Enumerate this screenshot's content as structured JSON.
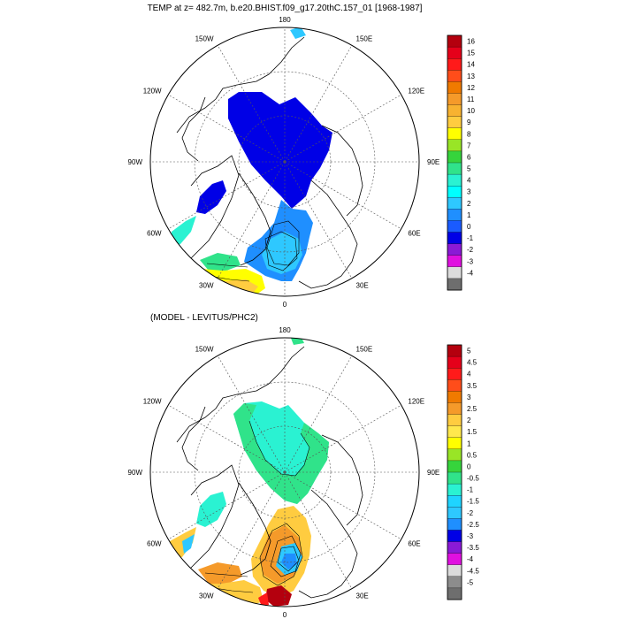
{
  "chart_data": [
    {
      "type": "heatmap",
      "projection": "north-polar-stereographic",
      "title": "TEMP at z= 482.7m, b.e20.BHIST.f09_g17.20thC.157_01 [1968-1987]",
      "longitude_labels": [
        "180",
        "150E",
        "120E",
        "90E",
        "60E",
        "30E",
        "0",
        "30W",
        "60W",
        "90W",
        "120W",
        "150W"
      ],
      "colorbar": {
        "placement": "right",
        "levels": [
          "16",
          "15",
          "14",
          "13",
          "12",
          "11",
          "10",
          "9",
          "8",
          "7",
          "6",
          "5",
          "4",
          "3",
          "2",
          "1",
          "0",
          "-1",
          "-2",
          "-3",
          "-4"
        ],
        "colors": [
          "#b4000e",
          "#e5001a",
          "#ff1a1a",
          "#ff4d1a",
          "#f07a00",
          "#f59a2a",
          "#f8b230",
          "#ffcc40",
          "#ffff00",
          "#99e526",
          "#36d43c",
          "#30e38a",
          "#2af2d2",
          "#00ffff",
          "#2ec8ff",
          "#1f8fff",
          "#1a5bff",
          "#0000e6",
          "#8a1ad6",
          "#e010e0",
          "#dcdcdc",
          "#6e6e6e"
        ]
      },
      "grid": true
    },
    {
      "type": "heatmap",
      "projection": "north-polar-stereographic",
      "title": "(MODEL - LEVITUS/PHC2)",
      "longitude_labels": [
        "180",
        "150E",
        "120E",
        "90E",
        "60E",
        "30E",
        "0",
        "30W",
        "60W",
        "90W",
        "120W",
        "150W"
      ],
      "colorbar": {
        "placement": "right",
        "levels": [
          "5",
          "4.5",
          "4",
          "3.5",
          "3",
          "2.5",
          "2",
          "1.5",
          "1",
          "0.5",
          "0",
          "-0.5",
          "-1",
          "-1.5",
          "-2",
          "-2.5",
          "-3",
          "-3.5",
          "-4",
          "-4.5",
          "-5"
        ],
        "colors": [
          "#b4000e",
          "#e5001a",
          "#ff1a1a",
          "#ff4d1a",
          "#f07a00",
          "#f59a2a",
          "#ffcc40",
          "#ffe84d",
          "#ffff00",
          "#99e526",
          "#36d43c",
          "#30e38a",
          "#2af2d2",
          "#1fd4ff",
          "#2ec8ff",
          "#1f8fff",
          "#0000e6",
          "#8a1ad6",
          "#e010e0",
          "#dcdcdc",
          "#8c8c8c",
          "#6e6e6e"
        ]
      },
      "grid": true
    }
  ]
}
